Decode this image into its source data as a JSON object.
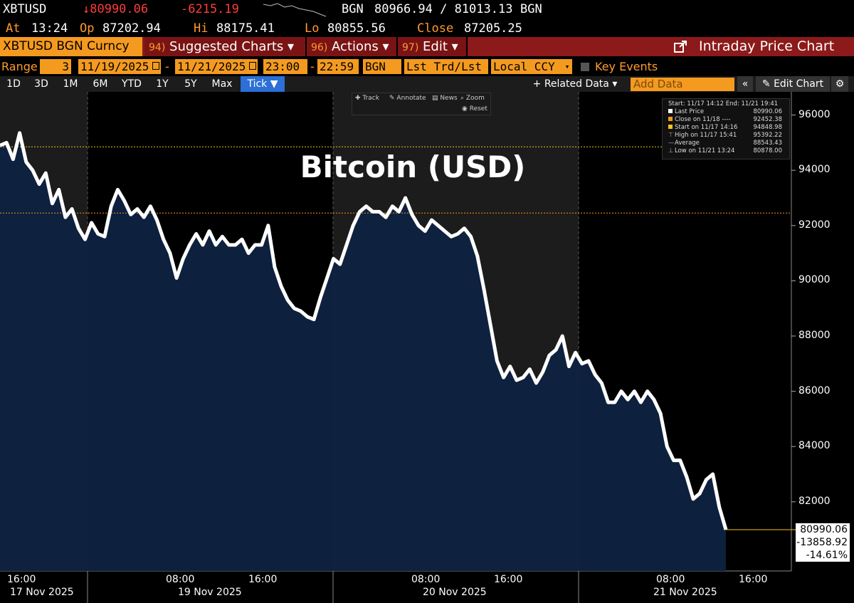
{
  "quote": {
    "ticker": "XBTUSD",
    "last": "↓80990.06",
    "change": "-6215.19",
    "source": "BGN",
    "bid_ask": "80966.94 / 81013.13",
    "source2": "BGN",
    "at_label": "At",
    "at_time": "13:24",
    "op_label": "Op",
    "op_value": "87202.94",
    "hi_label": "Hi",
    "hi_value": "88175.41",
    "lo_label": "Lo",
    "lo_value": "80855.56",
    "close_label": "Close",
    "close_value": "87205.25"
  },
  "menubar": {
    "security": "XBTUSD BGN Curncy",
    "suggested_num": "94)",
    "suggested_label": "Suggested Charts ▾",
    "actions_num": "96)",
    "actions_label": "Actions ▾",
    "edit_num": "97)",
    "edit_label": "Edit ▾",
    "title": "Intraday Price Chart"
  },
  "range": {
    "label": "Range",
    "days": "3",
    "start_date": "11/19/2025",
    "dash": "-",
    "end_date": "11/21/2025",
    "start_time": "23:00",
    "dash2": "-",
    "end_time": "22:59",
    "source": "BGN",
    "field": "Lst Trd/Lst P:",
    "currency": "Local CCY",
    "key_events": "Key Events"
  },
  "tabs": [
    "1D",
    "3D",
    "1M",
    "6M",
    "YTD",
    "1Y",
    "5Y",
    "Max",
    "Tick ▼"
  ],
  "tabbar": {
    "related": "+ Related Data ▾",
    "add_data_placeholder": "Add Data",
    "edit_chart": "Edit Chart"
  },
  "toolbar": {
    "track": "Track",
    "annotate": "Annotate",
    "news": "News",
    "zoom": "Zoom",
    "reset": "Reset"
  },
  "legend": {
    "header": "Start: 11/17 14:12 End: 11/21 19:41",
    "rows": [
      {
        "label": "Last Price",
        "value": "80990.06",
        "color": "#ffffff"
      },
      {
        "label": "Close on 11/18 ----",
        "value": "92452.38",
        "color": "#f49a1f"
      },
      {
        "label": "Start on 11/17 14:16",
        "value": "94848.98",
        "color": "#f4c21f"
      },
      {
        "label": "High on 11/17 15:41",
        "value": "95392.22",
        "color": ""
      },
      {
        "label": "Average",
        "value": "88543.43",
        "color": ""
      },
      {
        "label": "Low on 11/21 13:24",
        "value": "80878.00",
        "color": ""
      }
    ]
  },
  "chart_data": {
    "type": "area",
    "title": "Bitcoin (USD)",
    "ylim": [
      79500,
      96500
    ],
    "y_ticks": [
      82000,
      84000,
      86000,
      88000,
      90000,
      92000,
      94000,
      96000
    ],
    "x_tick_labels": [
      "16:00",
      "08:00",
      "16:00",
      "08:00",
      "16:00",
      "08:00",
      "16:00"
    ],
    "date_labels": [
      "17 Nov 2025",
      "19 Nov 2025",
      "20 Nov 2025",
      "21 Nov 2025"
    ],
    "reference_lines": [
      {
        "label": "Start on 11/17 14:16",
        "value": 94848.98,
        "color": "#f4c21f"
      },
      {
        "label": "Close on 11/18",
        "value": 92452.38,
        "color": "#f49a1f"
      }
    ],
    "last_value_box": {
      "price": "80990.06",
      "change": "-13858.92",
      "pct": "-14.61%"
    },
    "series": [
      {
        "values": [
          94900,
          95000,
          94400,
          95350,
          94300,
          94000,
          93500,
          93900,
          92800,
          93300,
          92300,
          92600,
          91900,
          91500,
          92100,
          91700,
          91600,
          92700,
          93300,
          92900,
          92400,
          92600,
          92300,
          92700,
          92200,
          91500,
          91000,
          90100,
          90800,
          91300,
          91700,
          91300,
          91800,
          91300,
          91600,
          91300,
          91300,
          91500,
          91000,
          91300,
          91300,
          92000,
          90500,
          89800,
          89300,
          89000,
          88900,
          88700,
          88600,
          89400,
          90100,
          90800,
          90600,
          91300,
          92000,
          92500,
          92700,
          92500,
          92500,
          92300,
          92700,
          92500,
          93000,
          92400,
          92000,
          91800,
          92200,
          92000,
          91800,
          91600,
          91700,
          91900,
          91600,
          90900,
          89700,
          88400,
          87100,
          86500,
          86900,
          86400,
          86500,
          86800,
          86300,
          86700,
          87300,
          87500,
          88000,
          86900,
          87400,
          87000,
          87100,
          86600,
          86300,
          85600,
          85600,
          86000,
          85700,
          86000,
          85600,
          86000,
          85700,
          85200,
          84000,
          83500,
          83500,
          82900,
          82100,
          82300,
          82800,
          83000,
          81800,
          80990
        ]
      }
    ]
  }
}
